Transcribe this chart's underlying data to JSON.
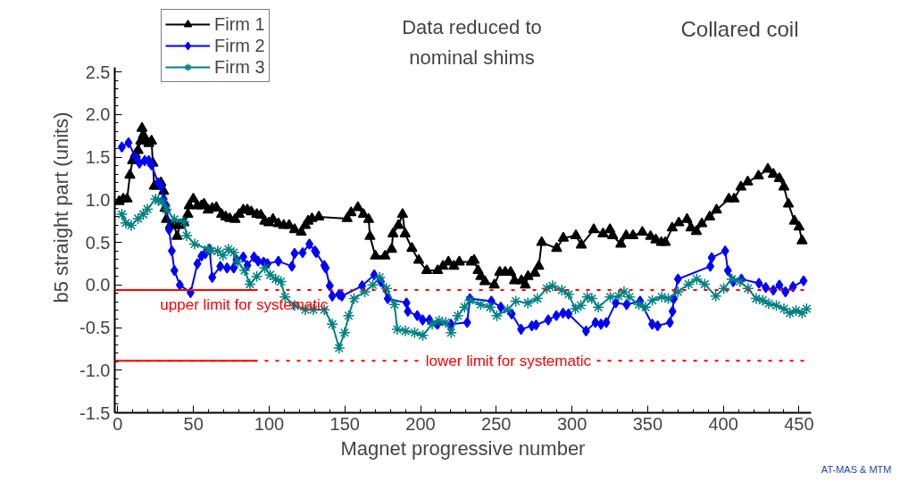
{
  "chart_data": {
    "type": "line",
    "title": "Collared coil",
    "subtitle": "Data reduced to\nnominal shims",
    "xlabel": "Magnet progressive number",
    "ylabel": "b5 straight part (units)",
    "xlim": [
      -2,
      458
    ],
    "ylim": [
      -1.5,
      2.55
    ],
    "xticks": [
      0,
      50,
      100,
      150,
      200,
      250,
      300,
      350,
      400,
      450
    ],
    "yticks": [
      {
        "value": -1.5,
        "label": "-1.5"
      },
      {
        "value": -1,
        "label": "-1.0"
      },
      {
        "value": -0.5,
        "label": "-0.5"
      },
      {
        "value": 0,
        "label": "0.0"
      },
      {
        "value": 0.5,
        "label": "0.5"
      },
      {
        "value": 1,
        "label": "1.0"
      },
      {
        "value": 1.5,
        "label": "1.5"
      },
      {
        "value": 2,
        "label": "2.0"
      },
      {
        "value": 2.5,
        "label": "2.5"
      }
    ],
    "grid": false,
    "legend": "top left",
    "line_style": "solid",
    "annotations": [
      "AT-MAS & MTM"
    ],
    "ref_lines": [
      {
        "axis": "y",
        "value": -0.06,
        "label": "upper limit for systematic",
        "color": "#ff0000",
        "line_style": "dotted"
      },
      {
        "axis": "y",
        "value": -0.89,
        "label": "lower limit for systematic",
        "color": "#ff0000",
        "line_style": "dotted"
      }
    ],
    "series": [
      {
        "name": "Firm 1",
        "color": "#000000",
        "marker": "triangle",
        "x": [
          0.9,
          3.6,
          6.2,
          8.0,
          9.8,
          11.6,
          13.4,
          15.2,
          16.0,
          16.9,
          18.7,
          20.5,
          22.3,
          23.2,
          24.1,
          25.8,
          28.5,
          30.3,
          31.2,
          32.1,
          34.8,
          37.4,
          39.2,
          41.0,
          43.7,
          46.3,
          47.2,
          49.9,
          52.6,
          55.3,
          57.0,
          59.7,
          62.4,
          65.1,
          68.6,
          71.3,
          74.0,
          77.5,
          80.2,
          82.9,
          85.6,
          88.2,
          91.8,
          94.5,
          97.1,
          99.8,
          102.5,
          106.1,
          109.6,
          113.2,
          116.8,
          121.2,
          123.9,
          125.7,
          128.3,
          132.8,
          151.5,
          154.1,
          158.6,
          162.2,
          165.7,
          166.6,
          170.2,
          176.5,
          180.9,
          181.8,
          185.4,
          188.1,
          189.8,
          194.3,
          198.8,
          204.1,
          211.3,
          214.8,
          218.4,
          222.0,
          225.6,
          233.6,
          235.4,
          238.0,
          239.8,
          242.5,
          248.7,
          252.3,
          255.9,
          259.5,
          262.1,
          266.6,
          269.2,
          271.0,
          275.5,
          278.1,
          280.0,
          289.9,
          294.3,
          302.6,
          306.2,
          314.4,
          320.5,
          325.1,
          326.9,
          332.3,
          335.8,
          340.3,
          346.5,
          351.9,
          355.4,
          359.0,
          361.7,
          366.2,
          370.6,
          376.0,
          378.6,
          382.2,
          385.8,
          391.0,
          395.5,
          403.6,
          407.1,
          411.6,
          416.1,
          423.2,
          429.4,
          433,
          437,
          440,
          443,
          447,
          450,
          452
        ],
        "values": [
          0.98,
          1.01,
          1.01,
          1.29,
          1.46,
          1.53,
          1.58,
          1.69,
          1.84,
          1.76,
          1.69,
          1.66,
          1.69,
          1.43,
          1.16,
          1.16,
          1.2,
          1.1,
          0.9,
          0.77,
          0.7,
          0.7,
          0.57,
          0.7,
          0.73,
          0.83,
          0.93,
          1.01,
          0.93,
          0.93,
          0.95,
          0.88,
          0.9,
          0.91,
          0.83,
          0.8,
          0.78,
          0.77,
          0.83,
          0.88,
          0.88,
          0.86,
          0.83,
          0.82,
          0.75,
          0.73,
          0.77,
          0.72,
          0.7,
          0.7,
          0.65,
          0.62,
          0.7,
          0.75,
          0.78,
          0.8,
          0.78,
          0.85,
          0.91,
          0.83,
          0.77,
          0.57,
          0.34,
          0.34,
          0.42,
          0.6,
          0.7,
          0.83,
          0.6,
          0.43,
          0.29,
          0.17,
          0.17,
          0.22,
          0.27,
          0.22,
          0.27,
          0.27,
          0.29,
          0.17,
          0.1,
          0.04,
          0.0,
          0.15,
          0.15,
          0.15,
          0.05,
          0.05,
          0.0,
          0.1,
          0.14,
          0.22,
          0.5,
          0.43,
          0.55,
          0.58,
          0.47,
          0.65,
          0.6,
          0.65,
          0.58,
          0.48,
          0.58,
          0.58,
          0.62,
          0.57,
          0.53,
          0.5,
          0.5,
          0.67,
          0.73,
          0.77,
          0.67,
          0.63,
          0.72,
          0.8,
          0.88,
          1.01,
          1.01,
          1.15,
          1.21,
          1.28,
          1.36,
          1.3,
          1.25,
          1.15,
          0.95,
          0.75,
          0.68,
          0.52
        ]
      },
      {
        "name": "Firm 2",
        "color": "#0000ff",
        "marker": "diamond",
        "x": [
          2.7,
          7.1,
          11.6,
          14.3,
          17.8,
          20.5,
          22.3,
          26.7,
          28.5,
          30.3,
          32.1,
          33.9,
          35.7,
          37.4,
          41.0,
          48.1,
          52.6,
          55.3,
          57.9,
          60.6,
          62.4,
          67.7,
          72.2,
          76.6,
          78.4,
          82.9,
          85.6,
          90.0,
          92.7,
          96.3,
          98.9,
          106.1,
          115.0,
          116.8,
          122.1,
          126.6,
          130.2,
          131.1,
          136.4,
          137.3,
          140.0,
          141.7,
          146.2,
          148.0,
          161.4,
          169.4,
          173.8,
          178.3,
          190.7,
          191.6,
          197.8,
          201.4,
          205.9,
          211.2,
          220.1,
          230.8,
          232.6,
          246.8,
          253.0,
          260.2,
          266.4,
          273.5,
          276.3,
          284.3,
          289.7,
          294.1,
          297.7,
          309.3,
          315.5,
          319.2,
          322.7,
          328.9,
          336.1,
          345.0,
          353.0,
          356.6,
          364.7,
          366.4,
          367.3,
          370.0,
          391.4,
          392.3,
          401.2,
          403.0,
          406.5,
          411.9,
          423.5,
          428,
          433,
          437,
          441,
          446,
          453
        ],
        "values": [
          1.62,
          1.67,
          1.5,
          1.43,
          1.46,
          1.46,
          1.41,
          1.2,
          1.16,
          1.01,
          0.93,
          0.65,
          0.4,
          0.17,
          0.0,
          -0.09,
          0.25,
          0.34,
          0.37,
          0.42,
          0.09,
          0.22,
          0.2,
          0.2,
          0.3,
          0.33,
          0.23,
          0.33,
          0.28,
          0.27,
          0.25,
          0.28,
          0.22,
          0.37,
          0.38,
          0.48,
          0.4,
          0.38,
          0.23,
          0.2,
          -0.01,
          -0.13,
          -0.11,
          -0.13,
          -0.01,
          0.12,
          0.04,
          -0.16,
          -0.21,
          -0.31,
          -0.36,
          -0.41,
          -0.41,
          -0.46,
          -0.46,
          -0.44,
          -0.16,
          -0.19,
          -0.26,
          -0.34,
          -0.52,
          -0.48,
          -0.47,
          -0.41,
          -0.36,
          -0.33,
          -0.34,
          -0.54,
          -0.44,
          -0.46,
          -0.44,
          -0.21,
          -0.23,
          -0.19,
          -0.46,
          -0.48,
          -0.44,
          -0.31,
          -0.16,
          0.07,
          0.22,
          0.32,
          0.4,
          0.17,
          0.04,
          0.07,
          0.02,
          -0.03,
          -0.06,
          0.0,
          -0.08,
          -0.02,
          0.05
        ]
      },
      {
        "name": "Firm 3",
        "color": "#008080",
        "marker": "cross",
        "x": [
          2.7,
          5.3,
          8.9,
          13.4,
          16.9,
          19.6,
          25.0,
          26.7,
          29.4,
          32.1,
          37.4,
          43.7,
          45.5,
          50.8,
          59.7,
          61.5,
          66.0,
          69.5,
          73.1,
          76.6,
          79.3,
          83.8,
          87.3,
          91.8,
          97.1,
          100.7,
          104.3,
          107.8,
          110.5,
          116.8,
          123.9,
          129.2,
          136.4,
          141.7,
          146.2,
          149.8,
          152.5,
          156.1,
          163.2,
          168.5,
          173.0,
          177.5,
          182.8,
          184.6,
          190.0,
          196.1,
          201.5,
          207.7,
          212.2,
          216.6,
          220.2,
          224.6,
          229.1,
          232.6,
          239.7,
          246.0,
          250.4,
          257.5,
          262.9,
          270.9,
          277.2,
          283.4,
          287.1,
          293.3,
          297.8,
          302.3,
          305.9,
          310.1,
          313.1,
          317.4,
          325.3,
          330.8,
          334.4,
          337.9,
          344.2,
          348.6,
          353.1,
          359.3,
          363.6,
          370.0,
          377.1,
          382.4,
          387.7,
          395.0,
          400.3,
          405.6,
          411.0,
          416.3,
          421.7,
          426,
          430,
          435,
          440,
          444,
          448,
          452,
          455
        ],
        "values": [
          0.83,
          0.73,
          0.7,
          0.78,
          0.83,
          0.89,
          1.01,
          0.99,
          0.98,
          0.89,
          0.77,
          0.74,
          0.58,
          0.48,
          0.42,
          0.4,
          0.4,
          0.35,
          0.42,
          0.38,
          0.27,
          0.17,
          0.01,
          0.1,
          0.2,
          0.12,
          0.07,
          0.04,
          -0.14,
          -0.24,
          -0.29,
          -0.29,
          -0.29,
          -0.46,
          -0.74,
          -0.56,
          -0.36,
          -0.16,
          -0.08,
          0.0,
          0.09,
          -0.04,
          -0.23,
          -0.52,
          -0.54,
          -0.56,
          -0.59,
          -0.46,
          -0.42,
          -0.44,
          -0.56,
          -0.36,
          -0.26,
          -0.18,
          -0.23,
          -0.26,
          -0.36,
          -0.29,
          -0.19,
          -0.21,
          -0.16,
          -0.04,
          -0.01,
          -0.06,
          -0.11,
          -0.28,
          -0.24,
          -0.14,
          -0.16,
          -0.26,
          -0.14,
          -0.13,
          -0.08,
          -0.14,
          -0.23,
          -0.26,
          -0.18,
          -0.14,
          -0.16,
          -0.08,
          0.01,
          0.07,
          0.01,
          -0.13,
          -0.04,
          0.07,
          0.04,
          -0.04,
          -0.16,
          -0.18,
          -0.22,
          -0.24,
          -0.28,
          -0.33,
          -0.3,
          -0.33,
          -0.28
        ]
      },
      {
        "color": "#ff0000",
        "marker": "none",
        "x": [
          -2,
          92
        ],
        "values": [
          -0.06,
          -0.06
        ]
      },
      {
        "color": "#ff0000",
        "marker": "none",
        "x": [
          -2,
          92
        ],
        "values": [
          -0.89,
          -0.89
        ]
      }
    ]
  }
}
